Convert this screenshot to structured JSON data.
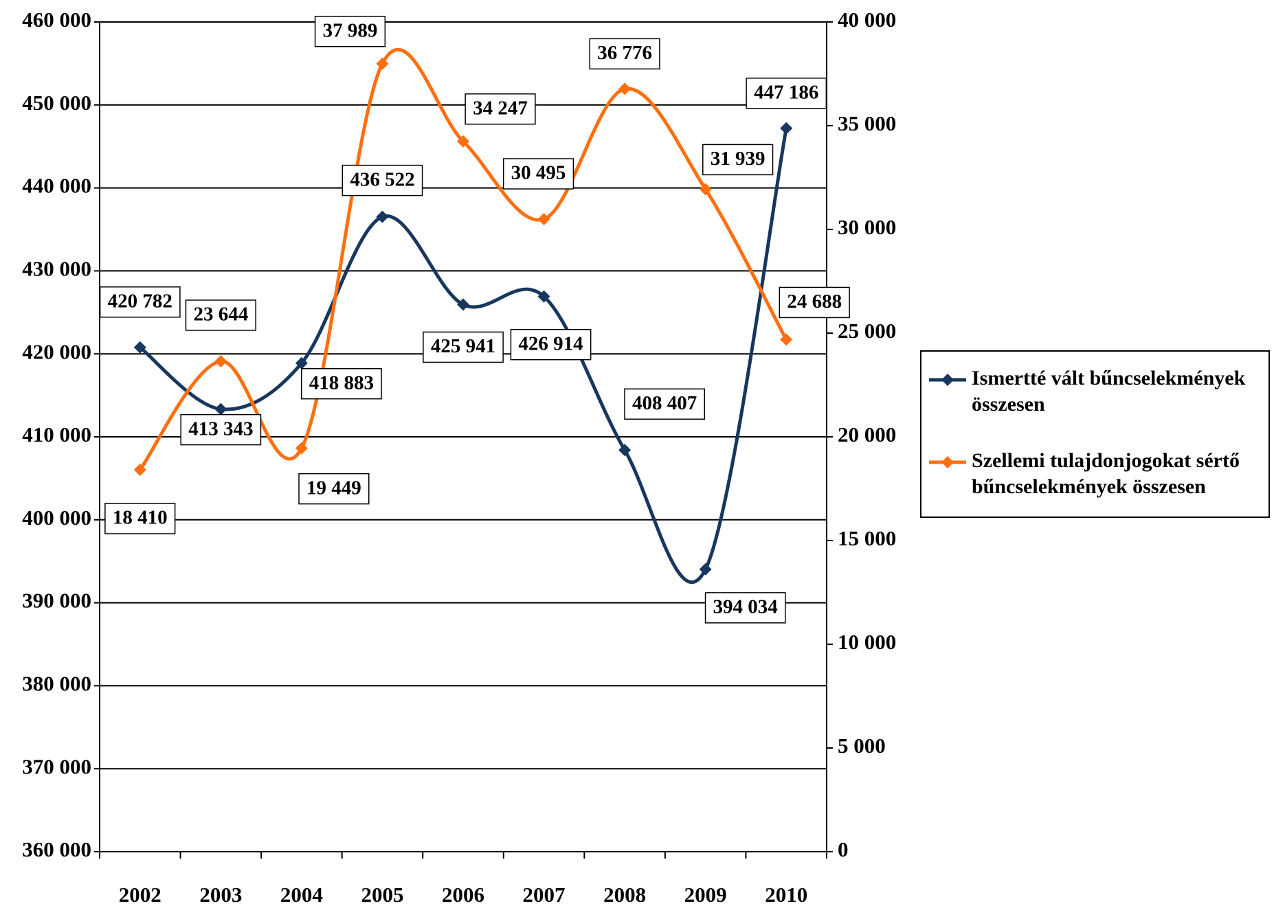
{
  "chart_data": {
    "type": "line",
    "categories": [
      "2002",
      "2003",
      "2004",
      "2005",
      "2006",
      "2007",
      "2008",
      "2009",
      "2010"
    ],
    "series": [
      {
        "name": "Ismertté vált bűncselekmények összesen",
        "color": "#17375e",
        "values": [
          420782,
          413343,
          418883,
          436522,
          425941,
          426914,
          408407,
          394034,
          447186
        ],
        "value_labels": [
          "420 782",
          "413 343",
          "418 883",
          "436 522",
          "425 941",
          "426 914",
          "408 407",
          "394 034",
          "447 186"
        ]
      },
      {
        "name": "Szellemi tulajdonjogokat sértő bűncselekmények összesen",
        "color": "#ff6f0f",
        "axis": "y2",
        "values": [
          18410,
          23644,
          19449,
          37989,
          34247,
          30495,
          36776,
          31939,
          24688
        ],
        "value_labels": [
          "18 410",
          "23 644",
          "19 449",
          "37 989",
          "34 247",
          "30 495",
          "36 776",
          "31 939",
          "24 688"
        ]
      }
    ],
    "ylim": [
      360000,
      460000
    ],
    "yticks": [
      {
        "value": 360000,
        "label": "360 000"
      },
      {
        "value": 370000,
        "label": "370 000"
      },
      {
        "value": 380000,
        "label": "380 000"
      },
      {
        "value": 390000,
        "label": "390 000"
      },
      {
        "value": 400000,
        "label": "400 000"
      },
      {
        "value": 410000,
        "label": "410 000"
      },
      {
        "value": 420000,
        "label": "420 000"
      },
      {
        "value": 430000,
        "label": "430 000"
      },
      {
        "value": 440000,
        "label": "440 000"
      },
      {
        "value": 450000,
        "label": "450 000"
      },
      {
        "value": 460000,
        "label": "460 000"
      }
    ],
    "y2lim": [
      0,
      40000
    ],
    "y2ticks": [
      0,
      {
        "value": 5000,
        "label": "5 000"
      },
      {
        "value": 10000,
        "label": "10 000"
      },
      {
        "value": 15000,
        "label": "15 000"
      },
      {
        "value": 20000,
        "label": "20 000"
      },
      {
        "value": 25000,
        "label": "25 000"
      },
      {
        "value": 30000,
        "label": "30 000"
      },
      {
        "value": 35000,
        "label": "35 000"
      },
      {
        "value": 40000,
        "label": "40 000"
      }
    ],
    "grid": true,
    "legend": "right"
  }
}
